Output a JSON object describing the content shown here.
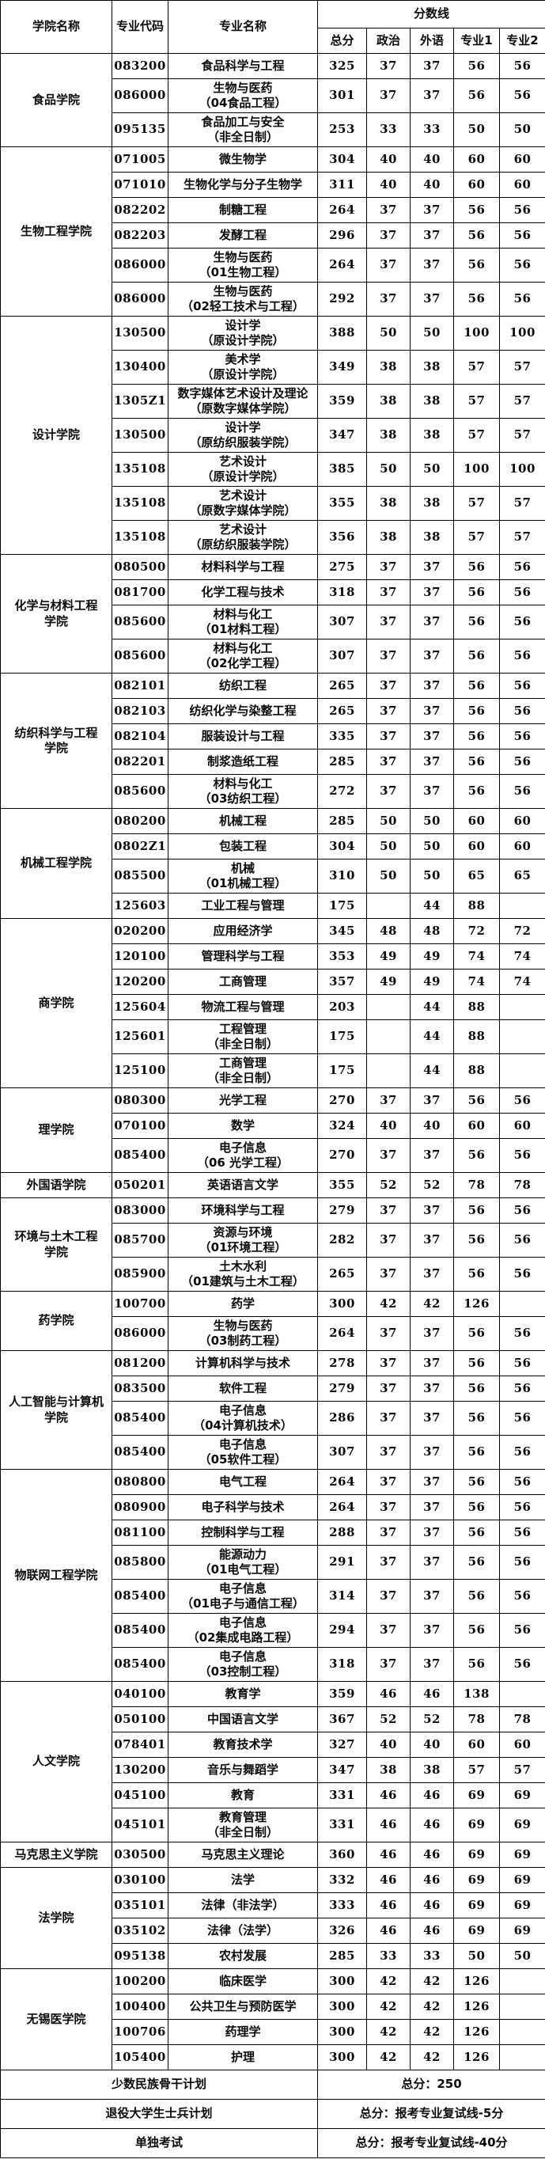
{
  "colors": {
    "border": "#000000",
    "text": "#0a0a0a",
    "background": "#ffffff"
  },
  "table": {
    "headers": {
      "college": "学院名称",
      "major_code": "专业代码",
      "major_name": "专业名称",
      "score_line": "分数线",
      "sub": [
        "总分",
        "政治",
        "外语",
        "专业1",
        "专业2"
      ]
    },
    "groups": [
      {
        "college": "食品学院",
        "rows": [
          {
            "code": "083200",
            "name": "食品科学与工程",
            "scores": [
              "325",
              "37",
              "37",
              "56",
              "56"
            ]
          },
          {
            "code": "086000",
            "name": "生物与医药\n（04食品工程）",
            "scores": [
              "301",
              "37",
              "37",
              "56",
              "56"
            ]
          },
          {
            "code": "095135",
            "name": "食品加工与安全\n（非全日制）",
            "scores": [
              "253",
              "33",
              "33",
              "50",
              "50"
            ]
          }
        ]
      },
      {
        "college": "生物工程学院",
        "rows": [
          {
            "code": "071005",
            "name": "微生物学",
            "scores": [
              "304",
              "40",
              "40",
              "60",
              "60"
            ]
          },
          {
            "code": "071010",
            "name": "生物化学与分子生物学",
            "scores": [
              "311",
              "40",
              "40",
              "60",
              "60"
            ]
          },
          {
            "code": "082202",
            "name": "制糖工程",
            "scores": [
              "264",
              "37",
              "37",
              "56",
              "56"
            ]
          },
          {
            "code": "082203",
            "name": "发酵工程",
            "scores": [
              "296",
              "37",
              "37",
              "56",
              "56"
            ]
          },
          {
            "code": "086000",
            "name": "生物与医药\n（01生物工程）",
            "scores": [
              "264",
              "37",
              "37",
              "56",
              "56"
            ]
          },
          {
            "code": "086000",
            "name": "生物与医药\n（02轻工技术与工程）",
            "scores": [
              "292",
              "37",
              "37",
              "56",
              "56"
            ]
          }
        ]
      },
      {
        "college": "设计学院",
        "rows": [
          {
            "code": "130500",
            "name": "设计学\n（原设计学院）",
            "scores": [
              "388",
              "50",
              "50",
              "100",
              "100"
            ]
          },
          {
            "code": "130400",
            "name": "美术学\n（原设计学院）",
            "scores": [
              "349",
              "38",
              "38",
              "57",
              "57"
            ]
          },
          {
            "code": "1305Z1",
            "name": "数字媒体艺术设计及理论\n（原数字媒体学院）",
            "scores": [
              "359",
              "38",
              "38",
              "57",
              "57"
            ]
          },
          {
            "code": "130500",
            "name": "设计学\n（原纺织服装学院）",
            "scores": [
              "347",
              "38",
              "38",
              "57",
              "57"
            ]
          },
          {
            "code": "135108",
            "name": "艺术设计\n（原设计学院）",
            "scores": [
              "385",
              "50",
              "50",
              "100",
              "100"
            ]
          },
          {
            "code": "135108",
            "name": "艺术设计\n（原数字媒体学院）",
            "scores": [
              "355",
              "38",
              "38",
              "57",
              "57"
            ]
          },
          {
            "code": "135108",
            "name": "艺术设计\n（原纺织服装学院）",
            "scores": [
              "356",
              "38",
              "38",
              "57",
              "57"
            ]
          }
        ]
      },
      {
        "college": "化学与材料工程\n学院",
        "rows": [
          {
            "code": "080500",
            "name": "材料科学与工程",
            "scores": [
              "275",
              "37",
              "37",
              "56",
              "56"
            ]
          },
          {
            "code": "081700",
            "name": "化学工程与技术",
            "scores": [
              "318",
              "37",
              "37",
              "56",
              "56"
            ]
          },
          {
            "code": "085600",
            "name": "材料与化工\n（01材料工程）",
            "scores": [
              "307",
              "37",
              "37",
              "56",
              "56"
            ]
          },
          {
            "code": "085600",
            "name": "材料与化工\n（02化学工程）",
            "scores": [
              "307",
              "37",
              "37",
              "56",
              "56"
            ]
          }
        ]
      },
      {
        "college": "纺织科学与工程\n学院",
        "rows": [
          {
            "code": "082101",
            "name": "纺织工程",
            "scores": [
              "265",
              "37",
              "37",
              "56",
              "56"
            ]
          },
          {
            "code": "082103",
            "name": "纺织化学与染整工程",
            "scores": [
              "265",
              "37",
              "37",
              "56",
              "56"
            ]
          },
          {
            "code": "082104",
            "name": "服装设计与工程",
            "scores": [
              "335",
              "37",
              "37",
              "56",
              "56"
            ]
          },
          {
            "code": "082201",
            "name": "制浆造纸工程",
            "scores": [
              "285",
              "37",
              "37",
              "56",
              "56"
            ]
          },
          {
            "code": "085600",
            "name": "材料与化工\n（03纺织工程）",
            "scores": [
              "272",
              "37",
              "37",
              "56",
              "56"
            ]
          }
        ]
      },
      {
        "college": "机械工程学院",
        "rows": [
          {
            "code": "080200",
            "name": "机械工程",
            "scores": [
              "285",
              "50",
              "50",
              "60",
              "60"
            ]
          },
          {
            "code": "0802Z1",
            "name": "包装工程",
            "scores": [
              "304",
              "50",
              "50",
              "60",
              "60"
            ]
          },
          {
            "code": "085500",
            "name": "机械\n（01机械工程）",
            "scores": [
              "310",
              "50",
              "50",
              "65",
              "65"
            ]
          },
          {
            "code": "125603",
            "name": "工业工程与管理",
            "scores": [
              "175",
              "",
              "44",
              "88",
              ""
            ]
          }
        ]
      },
      {
        "college": "商学院",
        "rows": [
          {
            "code": "020200",
            "name": "应用经济学",
            "scores": [
              "345",
              "48",
              "48",
              "72",
              "72"
            ]
          },
          {
            "code": "120100",
            "name": "管理科学与工程",
            "scores": [
              "353",
              "49",
              "49",
              "74",
              "74"
            ]
          },
          {
            "code": "120200",
            "name": "工商管理",
            "scores": [
              "357",
              "49",
              "49",
              "74",
              "74"
            ]
          },
          {
            "code": "125604",
            "name": "物流工程与管理",
            "scores": [
              "203",
              "",
              "44",
              "88",
              ""
            ]
          },
          {
            "code": "125601",
            "name": "工程管理\n（非全日制）",
            "scores": [
              "175",
              "",
              "44",
              "88",
              ""
            ]
          },
          {
            "code": "125100",
            "name": "工商管理\n（非全日制）",
            "scores": [
              "175",
              "",
              "44",
              "88",
              ""
            ]
          }
        ]
      },
      {
        "college": "理学院",
        "rows": [
          {
            "code": "080300",
            "name": "光学工程",
            "scores": [
              "270",
              "37",
              "37",
              "56",
              "56"
            ]
          },
          {
            "code": "070100",
            "name": "数学",
            "scores": [
              "324",
              "40",
              "40",
              "60",
              "60"
            ]
          },
          {
            "code": "085400",
            "name": "电子信息\n（06 光学工程）",
            "scores": [
              "270",
              "37",
              "37",
              "56",
              "56"
            ]
          }
        ]
      },
      {
        "college": "外国语学院",
        "rows": [
          {
            "code": "050201",
            "name": "英语语言文学",
            "scores": [
              "355",
              "52",
              "52",
              "78",
              "78"
            ]
          }
        ]
      },
      {
        "college": "环境与土木工程\n学院",
        "rows": [
          {
            "code": "083000",
            "name": "环境科学与工程",
            "scores": [
              "279",
              "37",
              "37",
              "56",
              "56"
            ]
          },
          {
            "code": "085700",
            "name": "资源与环境\n（01环境工程）",
            "scores": [
              "282",
              "37",
              "37",
              "56",
              "56"
            ]
          },
          {
            "code": "085900",
            "name": "土木水利\n（01建筑与土木工程）",
            "scores": [
              "265",
              "37",
              "37",
              "56",
              "56"
            ]
          }
        ]
      },
      {
        "college": "药学院",
        "rows": [
          {
            "code": "100700",
            "name": "药学",
            "scores": [
              "300",
              "42",
              "42",
              "126",
              ""
            ]
          },
          {
            "code": "086000",
            "name": "生物与医药\n（03制药工程）",
            "scores": [
              "264",
              "37",
              "37",
              "56",
              "56"
            ]
          }
        ]
      },
      {
        "college": "人工智能与计算机\n学院",
        "rows": [
          {
            "code": "081200",
            "name": "计算机科学与技术",
            "scores": [
              "278",
              "37",
              "37",
              "56",
              "56"
            ]
          },
          {
            "code": "083500",
            "name": "软件工程",
            "scores": [
              "279",
              "37",
              "37",
              "56",
              "56"
            ]
          },
          {
            "code": "085400",
            "name": "电子信息\n（04计算机技术）",
            "scores": [
              "286",
              "37",
              "37",
              "56",
              "56"
            ]
          },
          {
            "code": "085400",
            "name": "电子信息\n（05软件工程）",
            "scores": [
              "307",
              "37",
              "37",
              "56",
              "56"
            ]
          }
        ]
      },
      {
        "college": "物联网工程学院",
        "rows": [
          {
            "code": "080800",
            "name": "电气工程",
            "scores": [
              "264",
              "37",
              "37",
              "56",
              "56"
            ]
          },
          {
            "code": "080900",
            "name": "电子科学与技术",
            "scores": [
              "264",
              "37",
              "37",
              "56",
              "56"
            ]
          },
          {
            "code": "081100",
            "name": "控制科学与工程",
            "scores": [
              "288",
              "37",
              "37",
              "56",
              "56"
            ]
          },
          {
            "code": "085800",
            "name": "能源动力\n（01电气工程）",
            "scores": [
              "291",
              "37",
              "37",
              "56",
              "56"
            ]
          },
          {
            "code": "085400",
            "name": "电子信息\n（01电子与通信工程）",
            "scores": [
              "314",
              "37",
              "37",
              "56",
              "56"
            ]
          },
          {
            "code": "085400",
            "name": "电子信息\n（02集成电路工程）",
            "scores": [
              "294",
              "37",
              "37",
              "56",
              "56"
            ]
          },
          {
            "code": "085400",
            "name": "电子信息\n（03控制工程）",
            "scores": [
              "318",
              "37",
              "37",
              "56",
              "56"
            ]
          }
        ]
      },
      {
        "college": "人文学院",
        "rows": [
          {
            "code": "040100",
            "name": "教育学",
            "scores": [
              "359",
              "46",
              "46",
              "138",
              ""
            ]
          },
          {
            "code": "050100",
            "name": "中国语言文学",
            "scores": [
              "367",
              "52",
              "52",
              "78",
              "78"
            ]
          },
          {
            "code": "078401",
            "name": "教育技术学",
            "scores": [
              "327",
              "40",
              "40",
              "60",
              "60"
            ]
          },
          {
            "code": "130200",
            "name": "音乐与舞蹈学",
            "scores": [
              "347",
              "38",
              "38",
              "57",
              "57"
            ]
          },
          {
            "code": "045100",
            "name": "教育",
            "scores": [
              "331",
              "46",
              "46",
              "69",
              "69"
            ]
          },
          {
            "code": "045101",
            "name": "教育管理\n（非全日制）",
            "scores": [
              "331",
              "46",
              "46",
              "69",
              "69"
            ]
          }
        ]
      },
      {
        "college": "马克思主义学院",
        "rows": [
          {
            "code": "030500",
            "name": "马克思主义理论",
            "scores": [
              "360",
              "46",
              "46",
              "69",
              "69"
            ]
          }
        ]
      },
      {
        "college": "法学院",
        "rows": [
          {
            "code": "030100",
            "name": "法学",
            "scores": [
              "332",
              "46",
              "46",
              "69",
              "69"
            ]
          },
          {
            "code": "035101",
            "name": "法律（非法学）",
            "scores": [
              "333",
              "46",
              "46",
              "69",
              "69"
            ]
          },
          {
            "code": "035102",
            "name": "法律（法学）",
            "scores": [
              "326",
              "46",
              "46",
              "69",
              "69"
            ]
          },
          {
            "code": "095138",
            "name": "农村发展",
            "scores": [
              "285",
              "33",
              "33",
              "50",
              "50"
            ]
          }
        ]
      },
      {
        "college": "无锡医学院",
        "rows": [
          {
            "code": "100200",
            "name": "临床医学",
            "scores": [
              "300",
              "42",
              "42",
              "126",
              ""
            ]
          },
          {
            "code": "100400",
            "name": "公共卫生与预防医学",
            "scores": [
              "300",
              "42",
              "42",
              "126",
              ""
            ]
          },
          {
            "code": "100706",
            "name": "药理学",
            "scores": [
              "300",
              "42",
              "42",
              "126",
              ""
            ]
          },
          {
            "code": "105400",
            "name": "护理",
            "scores": [
              "300",
              "42",
              "42",
              "126",
              ""
            ]
          }
        ]
      }
    ],
    "footer": [
      {
        "label": "少数民族骨干计划",
        "value": "总分：250"
      },
      {
        "label": "退役大学生士兵计划",
        "value": "总分：报考专业复试线-5分"
      },
      {
        "label": "单独考试",
        "value": "总分：报考专业复试线-40分"
      }
    ]
  }
}
